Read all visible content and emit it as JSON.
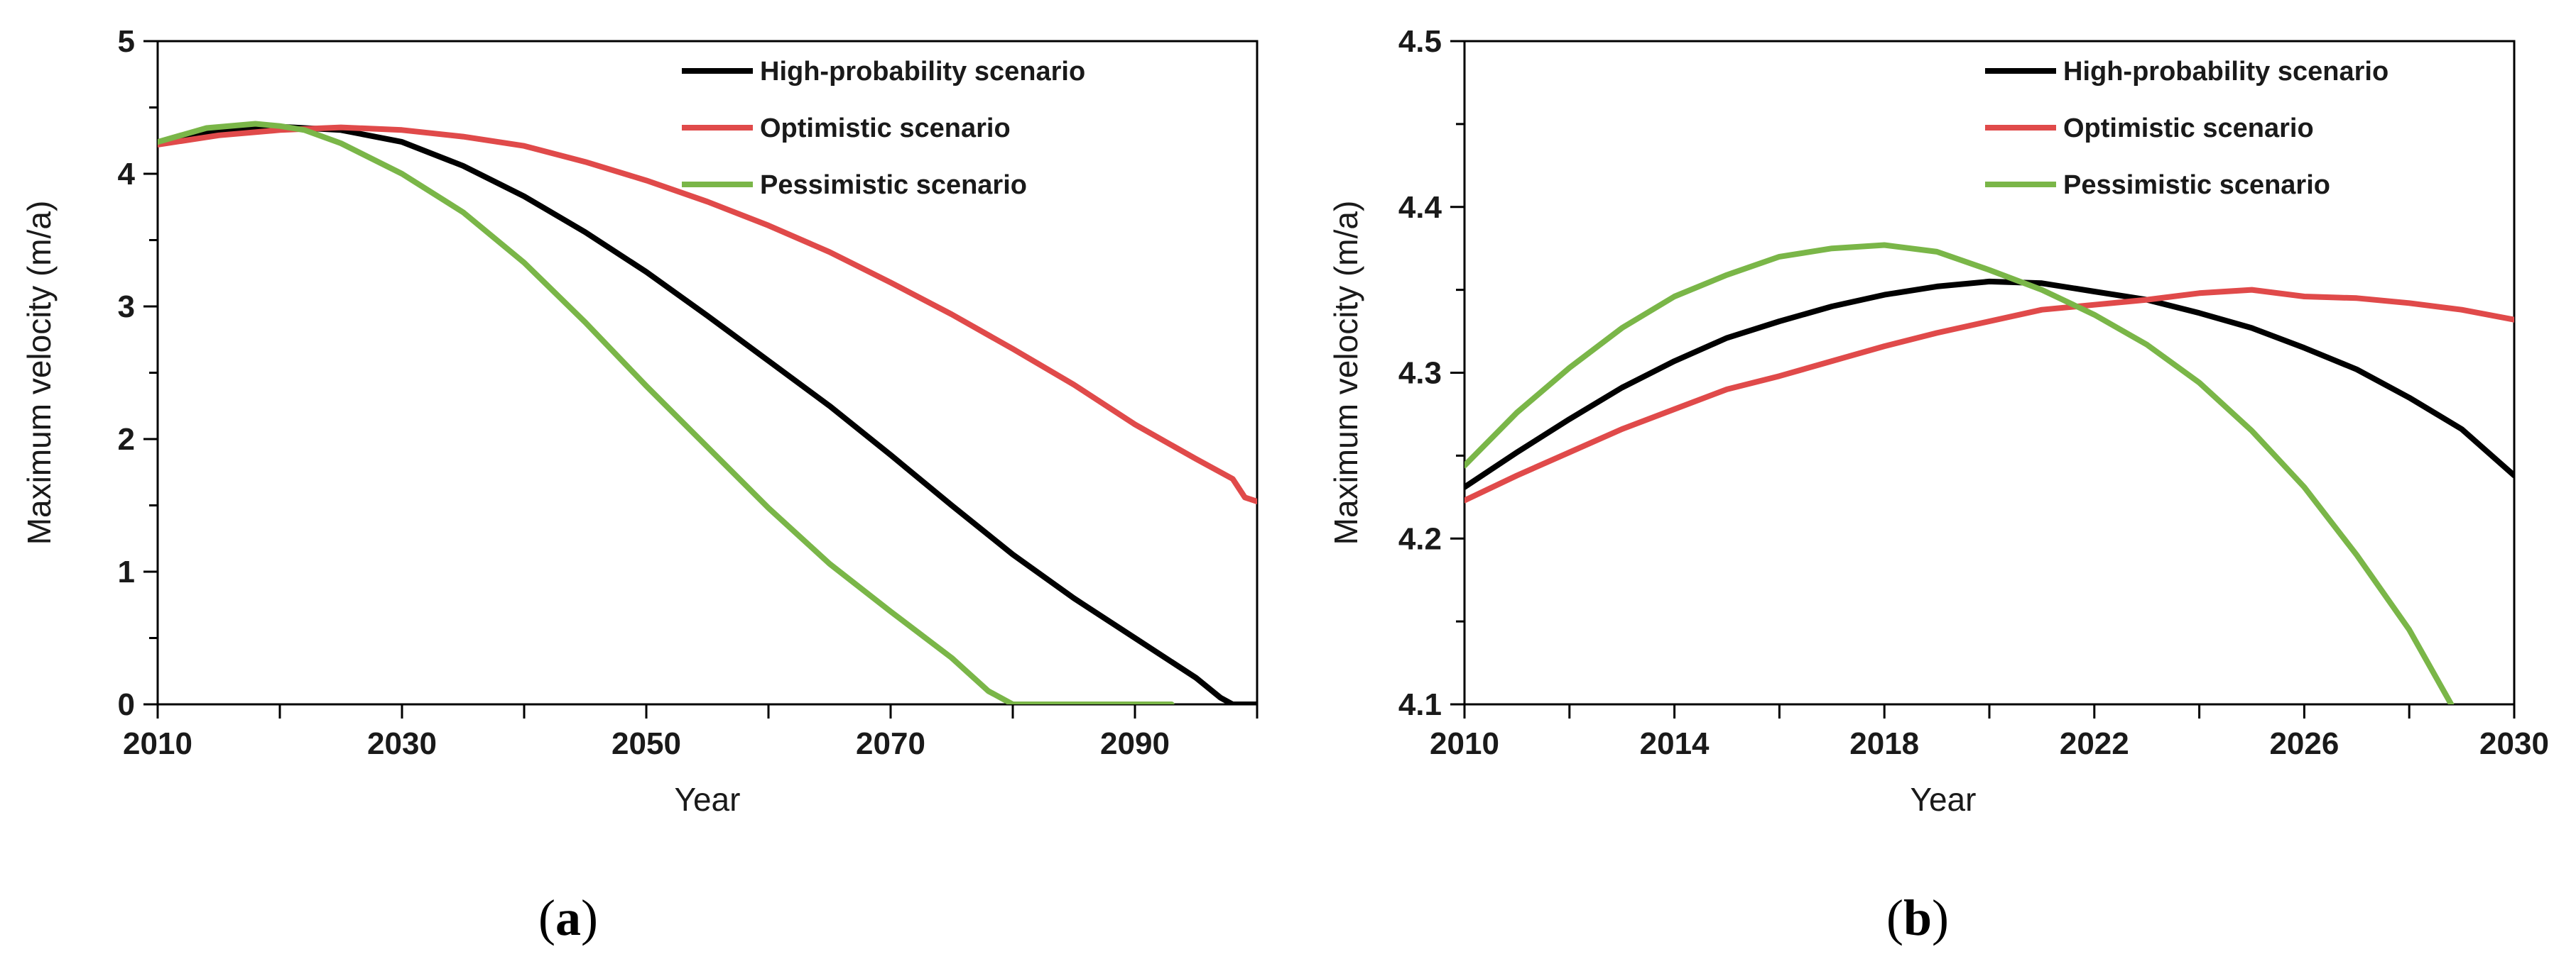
{
  "chart_data": [
    {
      "type": "line",
      "panel_label": "a",
      "xlabel": "Year",
      "ylabel": "Maximum velocity (m/a)",
      "xlim": [
        2010,
        2100
      ],
      "ylim": [
        0,
        5
      ],
      "xticks": [
        2010,
        2030,
        2050,
        2070,
        2090
      ],
      "xtick_labels": [
        "2010",
        "2030",
        "2050",
        "2070",
        "2090"
      ],
      "xminor_ticks": [
        2020,
        2040,
        2060,
        2080,
        2100
      ],
      "yticks": [
        0,
        1,
        2,
        3,
        4,
        5
      ],
      "ytick_labels": [
        "0",
        "1",
        "2",
        "3",
        "4",
        "5"
      ],
      "yminor_ticks": [
        0.5,
        1.5,
        2.5,
        3.5,
        4.5
      ],
      "legend_position": "top-right",
      "series": [
        {
          "name": "High-probability scenario",
          "color": "#000000",
          "x": [
            2010,
            2015,
            2020,
            2025,
            2030,
            2035,
            2040,
            2045,
            2050,
            2055,
            2060,
            2065,
            2070,
            2075,
            2080,
            2085,
            2090,
            2095,
            2097,
            2098,
            2100
          ],
          "y": [
            4.23,
            4.32,
            4.355,
            4.33,
            4.24,
            4.06,
            3.83,
            3.56,
            3.26,
            2.93,
            2.59,
            2.25,
            1.88,
            1.5,
            1.13,
            0.8,
            0.5,
            0.2,
            0.05,
            0.0,
            0.0
          ]
        },
        {
          "name": "Optimistic scenario",
          "color": "#e04a4a",
          "x": [
            2010,
            2015,
            2020,
            2025,
            2030,
            2035,
            2040,
            2045,
            2050,
            2055,
            2060,
            2065,
            2070,
            2075,
            2080,
            2085,
            2090,
            2095,
            2098,
            2099,
            2100
          ],
          "y": [
            4.22,
            4.29,
            4.33,
            4.35,
            4.33,
            4.28,
            4.21,
            4.09,
            3.95,
            3.79,
            3.61,
            3.41,
            3.18,
            2.94,
            2.68,
            2.41,
            2.11,
            1.85,
            1.7,
            1.56,
            1.53
          ]
        },
        {
          "name": "Pessimistic scenario",
          "color": "#7ab648",
          "x": [
            2010,
            2014,
            2018,
            2020,
            2022,
            2025,
            2030,
            2035,
            2040,
            2045,
            2050,
            2055,
            2060,
            2065,
            2070,
            2075,
            2078,
            2080,
            2085,
            2090,
            2093
          ],
          "y": [
            4.24,
            4.345,
            4.377,
            4.36,
            4.33,
            4.23,
            4.0,
            3.71,
            3.33,
            2.88,
            2.4,
            1.94,
            1.48,
            1.06,
            0.7,
            0.35,
            0.1,
            0.0,
            0.0,
            0.0,
            0.0
          ]
        }
      ]
    },
    {
      "type": "line",
      "panel_label": "b",
      "xlabel": "Year",
      "ylabel": "Maximum velocity (m/a)",
      "xlim": [
        2010,
        2030
      ],
      "ylim": [
        4.1,
        4.5
      ],
      "xticks": [
        2010,
        2014,
        2018,
        2022,
        2026,
        2030
      ],
      "xtick_labels": [
        "2010",
        "2014",
        "2018",
        "2022",
        "2026",
        "2030"
      ],
      "xminor_ticks": [
        2012,
        2016,
        2020,
        2024,
        2028
      ],
      "yticks": [
        4.1,
        4.2,
        4.3,
        4.4,
        4.5
      ],
      "ytick_labels": [
        "4.1",
        "4.2",
        "4.3",
        "4.4",
        "4.5"
      ],
      "yminor_ticks": [
        4.15,
        4.25,
        4.35,
        4.45
      ],
      "legend_position": "top-right",
      "series": [
        {
          "name": "High-probability scenario",
          "color": "#000000",
          "x": [
            2010,
            2011,
            2012,
            2013,
            2014,
            2015,
            2016,
            2017,
            2018,
            2019,
            2020,
            2021,
            2022,
            2023,
            2024,
            2025,
            2026,
            2027,
            2028,
            2029,
            2030
          ],
          "y": [
            4.231,
            4.252,
            4.272,
            4.291,
            4.307,
            4.321,
            4.331,
            4.34,
            4.347,
            4.352,
            4.355,
            4.354,
            4.349,
            4.344,
            4.336,
            4.327,
            4.315,
            4.302,
            4.285,
            4.266,
            4.238
          ]
        },
        {
          "name": "Optimistic scenario",
          "color": "#e04a4a",
          "x": [
            2010,
            2011,
            2012,
            2013,
            2014,
            2015,
            2016,
            2017,
            2018,
            2019,
            2020,
            2021,
            2022,
            2023,
            2024,
            2025,
            2026,
            2027,
            2028,
            2029,
            2030
          ],
          "y": [
            4.223,
            4.238,
            4.252,
            4.266,
            4.278,
            4.29,
            4.298,
            4.307,
            4.316,
            4.324,
            4.331,
            4.338,
            4.341,
            4.344,
            4.348,
            4.35,
            4.346,
            4.345,
            4.342,
            4.338,
            4.332
          ]
        },
        {
          "name": "Pessimistic scenario",
          "color": "#7ab648",
          "x": [
            2010,
            2011,
            2012,
            2013,
            2014,
            2015,
            2016,
            2017,
            2018,
            2019,
            2020,
            2021,
            2022,
            2023,
            2024,
            2025,
            2026,
            2027,
            2028,
            2028.8
          ],
          "y": [
            4.244,
            4.276,
            4.303,
            4.327,
            4.346,
            4.359,
            4.37,
            4.375,
            4.377,
            4.373,
            4.362,
            4.35,
            4.335,
            4.317,
            4.294,
            4.265,
            4.231,
            4.19,
            4.145,
            4.1
          ]
        }
      ]
    }
  ]
}
